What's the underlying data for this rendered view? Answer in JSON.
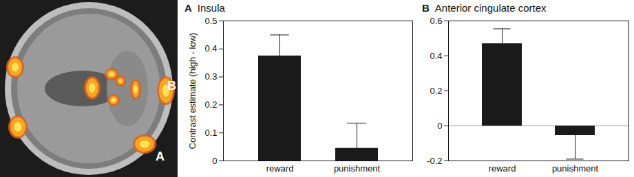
{
  "image": {
    "labels": [
      "A",
      "B"
    ]
  },
  "chart_data": [
    {
      "type": "bar",
      "title": "A Insula",
      "ylabel": "Contrast estimate (high - low)",
      "categories": [
        "reward",
        "punishment"
      ],
      "values": [
        0.375,
        0.045
      ],
      "errors": [
        0.075,
        0.09
      ],
      "color": "#1a1a1a",
      "ylim": [
        0,
        0.5
      ],
      "yticks": [
        0,
        0.1,
        0.2,
        0.3,
        0.4,
        0.5
      ]
    },
    {
      "type": "bar",
      "title": "B Anterior cingulate cortex",
      "categories": [
        "reward",
        "punishment"
      ],
      "values": [
        0.47,
        -0.055
      ],
      "errors": [
        0.085,
        0.135
      ],
      "color": "#1a1a1a",
      "ylim": [
        -0.2,
        0.6
      ],
      "yticks": [
        -0.2,
        0,
        0.2,
        0.4,
        0.6
      ]
    }
  ]
}
